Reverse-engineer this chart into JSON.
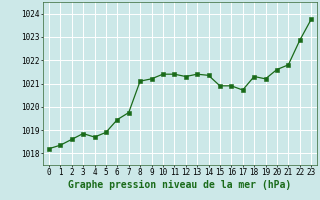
{
  "x": [
    0,
    1,
    2,
    3,
    4,
    5,
    6,
    7,
    8,
    9,
    10,
    11,
    12,
    13,
    14,
    15,
    16,
    17,
    18,
    19,
    20,
    21,
    22,
    23
  ],
  "y": [
    1018.2,
    1018.35,
    1018.6,
    1018.85,
    1018.7,
    1018.9,
    1019.45,
    1019.75,
    1021.1,
    1021.2,
    1021.4,
    1021.4,
    1021.3,
    1021.4,
    1021.35,
    1020.9,
    1020.9,
    1020.72,
    1021.3,
    1021.2,
    1021.6,
    1021.8,
    1022.85,
    1023.75
  ],
  "line_color": "#1a6b1a",
  "marker_color": "#1a6b1a",
  "bg_color": "#cce8e8",
  "grid_color": "#ffffff",
  "title": "Graphe pression niveau de la mer (hPa)",
  "ylim": [
    1017.5,
    1024.5
  ],
  "xlim": [
    -0.5,
    23.5
  ],
  "yticks": [
    1018,
    1019,
    1020,
    1021,
    1022,
    1023,
    1024
  ],
  "xticks": [
    0,
    1,
    2,
    3,
    4,
    5,
    6,
    7,
    8,
    9,
    10,
    11,
    12,
    13,
    14,
    15,
    16,
    17,
    18,
    19,
    20,
    21,
    22,
    23
  ],
  "title_fontsize": 7,
  "tick_fontsize": 5.5
}
